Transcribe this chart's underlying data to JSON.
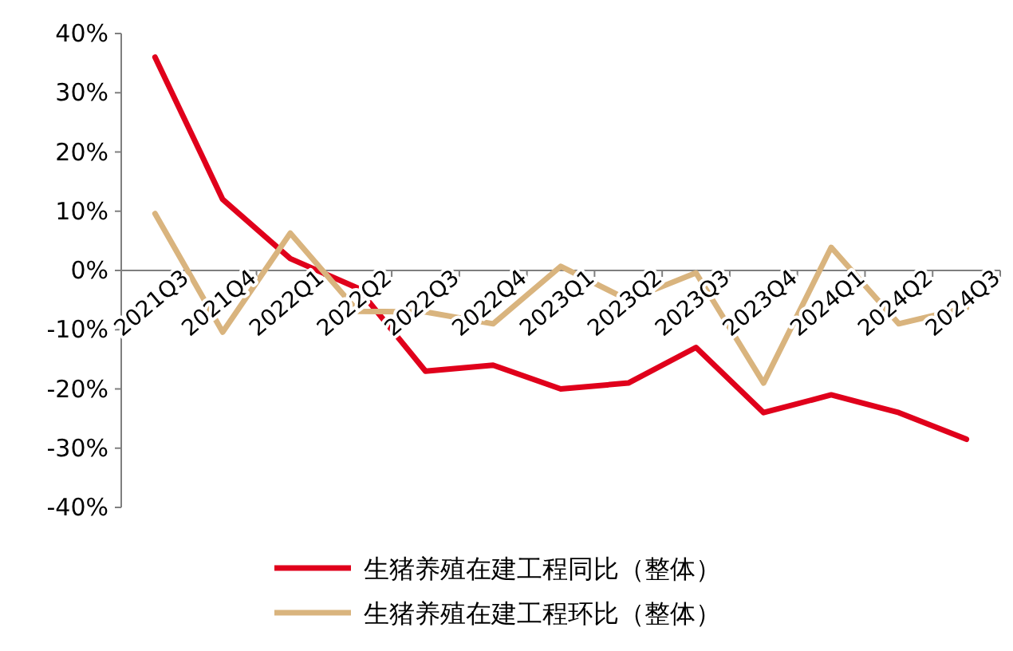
{
  "chart_data": {
    "type": "line",
    "categories": [
      "2021Q3",
      "2021Q4",
      "2022Q1",
      "2022Q2",
      "2022Q3",
      "2022Q4",
      "2023Q1",
      "2023Q2",
      "2023Q3",
      "2023Q4",
      "2024Q1",
      "2024Q2",
      "2024Q3"
    ],
    "series": [
      {
        "name": "生猪养殖在建工程同比（整体）",
        "color": "#e0001b",
        "values": [
          36,
          12,
          2,
          -3,
          -17,
          -16,
          -20,
          -19,
          -13,
          -24,
          -21,
          -24,
          -28.5
        ]
      },
      {
        "name": "生猪养殖在建工程环比（整体）",
        "color": "#d9b47e",
        "values": [
          9.6,
          -10.4,
          6.3,
          -6.9,
          -7,
          -9,
          0.7,
          -5,
          -0.4,
          -19,
          3.9,
          -9,
          -6.3
        ]
      }
    ],
    "ylim": [
      -40,
      40
    ],
    "yticks": [
      {
        "value": -40,
        "label": "-40%"
      },
      {
        "value": -30,
        "label": "-30%"
      },
      {
        "value": -20,
        "label": "-20%"
      },
      {
        "value": -10,
        "label": "-10%"
      },
      {
        "value": 0,
        "label": "0%"
      },
      {
        "value": 10,
        "label": "10%"
      },
      {
        "value": 20,
        "label": "20%"
      },
      {
        "value": 30,
        "label": "30%"
      },
      {
        "value": 40,
        "label": "40%"
      }
    ],
    "grid": false,
    "legend": "bottom",
    "marker": "none",
    "line_style": "solid"
  }
}
